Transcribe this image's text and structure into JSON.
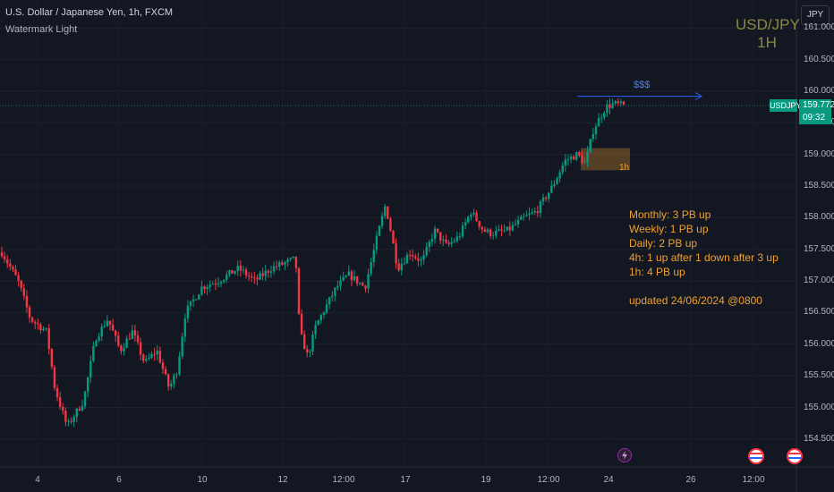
{
  "header": {
    "symbol_line": "U.S. Dollar / Japanese Yen, 1h, FXCM",
    "indicator": "Watermark Light"
  },
  "watermark": {
    "symbol": "USD/JPY",
    "interval": "1H",
    "color": "#8a8a3e"
  },
  "currency_button": "JPY",
  "price_scale": {
    "labels": [
      "161.000",
      "160.500",
      "160.000",
      "159.500",
      "159.000",
      "158.500",
      "158.000",
      "157.500",
      "157.000",
      "156.500",
      "156.000",
      "155.500",
      "155.000",
      "154.500"
    ]
  },
  "time_axis": {
    "labels": [
      "4",
      "6",
      "10",
      "12",
      "12:00",
      "17",
      "19",
      "12:00",
      "24",
      "26",
      "12:00"
    ]
  },
  "last_price": {
    "symbol": "USDJPY",
    "value": "159.772",
    "countdown": "09:32",
    "color": "#089981"
  },
  "annotations": {
    "liquidity_label": "$$$",
    "zone_label": "1h",
    "notes": [
      "Monthly: 3 PB up",
      "Weekly: 1 PB up",
      "Daily: 2 PB up",
      "4h: 1 up after 1 down after 3 up",
      "1h: 4 PB up",
      "",
      "updated 24/06/2024 @0800"
    ]
  },
  "colors": {
    "up": "#089981",
    "down": "#f23645",
    "background": "#131722",
    "notes": "#f0a030",
    "line": "#2962ff"
  },
  "icons": [
    "lightning-event-icon",
    "us-flag-event-icon",
    "us-flag-event-icon"
  ],
  "chart_data": {
    "type": "candlestick",
    "symbol": "USDJPY",
    "interval": "1h",
    "ylim": [
      154.3,
      161.3
    ],
    "close_path": [
      [
        0,
        157.45
      ],
      [
        0.02,
        157.0
      ],
      [
        0.035,
        156.4
      ],
      [
        0.055,
        156.2
      ],
      [
        0.065,
        155.3
      ],
      [
        0.08,
        154.7
      ],
      [
        0.1,
        155.1
      ],
      [
        0.115,
        156.1
      ],
      [
        0.13,
        156.4
      ],
      [
        0.145,
        155.9
      ],
      [
        0.16,
        156.2
      ],
      [
        0.175,
        155.7
      ],
      [
        0.19,
        155.9
      ],
      [
        0.205,
        155.3
      ],
      [
        0.215,
        155.6
      ],
      [
        0.225,
        156.5
      ],
      [
        0.245,
        156.9
      ],
      [
        0.265,
        157.0
      ],
      [
        0.29,
        157.2
      ],
      [
        0.31,
        157.0
      ],
      [
        0.33,
        157.2
      ],
      [
        0.36,
        157.35
      ],
      [
        0.365,
        156.2
      ],
      [
        0.375,
        155.8
      ],
      [
        0.385,
        156.3
      ],
      [
        0.41,
        156.9
      ],
      [
        0.425,
        157.1
      ],
      [
        0.445,
        156.9
      ],
      [
        0.46,
        157.7
      ],
      [
        0.47,
        158.2
      ],
      [
        0.475,
        157.9
      ],
      [
        0.485,
        157.2
      ],
      [
        0.5,
        157.45
      ],
      [
        0.515,
        157.3
      ],
      [
        0.53,
        157.8
      ],
      [
        0.545,
        157.55
      ],
      [
        0.56,
        157.7
      ],
      [
        0.575,
        158.1
      ],
      [
        0.59,
        157.8
      ],
      [
        0.6,
        157.75
      ],
      [
        0.62,
        157.8
      ],
      [
        0.64,
        158.0
      ],
      [
        0.655,
        158.1
      ],
      [
        0.675,
        158.5
      ],
      [
        0.69,
        158.9
      ],
      [
        0.705,
        159.0
      ],
      [
        0.715,
        158.85
      ],
      [
        0.725,
        159.4
      ],
      [
        0.74,
        159.75
      ],
      [
        0.75,
        159.8
      ],
      [
        0.762,
        159.77
      ]
    ]
  }
}
